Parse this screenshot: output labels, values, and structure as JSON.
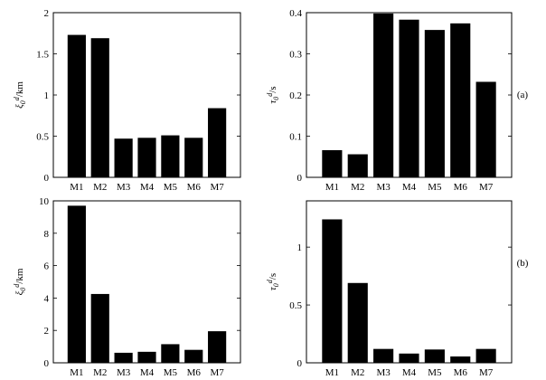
{
  "row_labels": [
    "(a)",
    "(b)"
  ],
  "chart_data": [
    {
      "type": "bar",
      "categories": [
        "M1",
        "M2",
        "M3",
        "M4",
        "M5",
        "M6",
        "M7"
      ],
      "values": [
        1.73,
        1.69,
        0.47,
        0.48,
        0.51,
        0.48,
        0.84
      ],
      "ylabel_main": "ξ",
      "ylabel_sub": "0",
      "ylabel_sup": "d",
      "ylabel_unit": "/km",
      "ylim": [
        0,
        2
      ],
      "yticks": [
        0,
        0.5,
        1,
        1.5,
        2
      ],
      "ytick_labels": [
        "0",
        "0.5",
        "1",
        "1.5",
        "2"
      ],
      "grid": false
    },
    {
      "type": "bar",
      "categories": [
        "M1",
        "M2",
        "M3",
        "M4",
        "M5",
        "M6",
        "M7"
      ],
      "values": [
        0.066,
        0.056,
        0.398,
        0.383,
        0.358,
        0.374,
        0.232
      ],
      "ylabel_main": "τ",
      "ylabel_sub": "0",
      "ylabel_sup": "d",
      "ylabel_unit": "/s",
      "ylim": [
        0,
        0.4
      ],
      "yticks": [
        0,
        0.1,
        0.2,
        0.3,
        0.4
      ],
      "ytick_labels": [
        "0",
        "0.1",
        "0.2",
        "0.3",
        "0.4"
      ],
      "grid": false
    },
    {
      "type": "bar",
      "categories": [
        "M1",
        "M2",
        "M3",
        "M4",
        "M5",
        "M6",
        "M7"
      ],
      "values": [
        9.7,
        4.25,
        0.62,
        0.68,
        1.15,
        0.8,
        1.95
      ],
      "ylabel_main": "ξ",
      "ylabel_sub": "0",
      "ylabel_sup": "d",
      "ylabel_unit": "/km",
      "ylim": [
        0,
        10
      ],
      "yticks": [
        0,
        2,
        4,
        6,
        8,
        10
      ],
      "ytick_labels": [
        "0",
        "2",
        "4",
        "6",
        "8",
        "10"
      ],
      "grid": false
    },
    {
      "type": "bar",
      "categories": [
        "M1",
        "M2",
        "M3",
        "M4",
        "M5",
        "M6",
        "M7"
      ],
      "values": [
        1.24,
        0.69,
        0.12,
        0.08,
        0.115,
        0.055,
        0.12
      ],
      "ylabel_main": "τ",
      "ylabel_sub": "0",
      "ylabel_sup": "d",
      "ylabel_unit": "/s",
      "ylim": [
        0,
        1.4
      ],
      "yticks": [
        0,
        0.5,
        1
      ],
      "ytick_labels": [
        "0",
        "0.5",
        "1"
      ],
      "grid": false
    }
  ]
}
